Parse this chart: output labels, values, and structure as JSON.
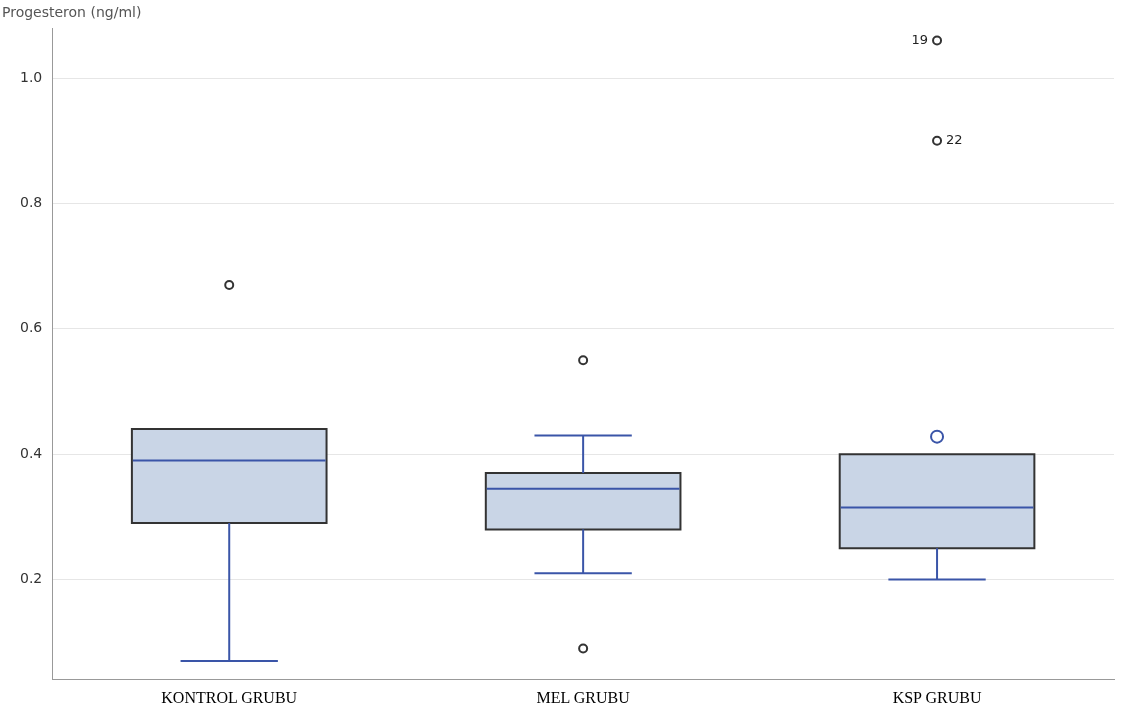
{
  "chart_data": {
    "type": "box",
    "ylabel": "Progesteron (ng/ml)",
    "categories": [
      "KONTROL GRUBU",
      "MEL GRUBU",
      "KSP GRUBU"
    ],
    "boxes": [
      {
        "low": 0.07,
        "q1": 0.29,
        "median": 0.39,
        "q3": 0.44,
        "high": 0.44,
        "mean": 0.372,
        "outliers": [
          0.67
        ]
      },
      {
        "low": 0.21,
        "q1": 0.28,
        "median": 0.345,
        "q3": 0.37,
        "high": 0.43,
        "mean": 0.328,
        "outliers": [
          0.55,
          0.09
        ]
      },
      {
        "low": 0.2,
        "q1": 0.25,
        "median": 0.315,
        "q3": 0.4,
        "high": 0.4,
        "mean": 0.428,
        "outliers": [
          1.06,
          0.9
        ]
      }
    ],
    "color": "#c9d5e6",
    "ylim": [
      0.04,
      1.08
    ],
    "yticks": [
      {
        "value": 0.2,
        "label": "0.2"
      },
      {
        "value": 0.4,
        "label": "0.4"
      },
      {
        "value": 0.6,
        "label": "0.6"
      },
      {
        "value": 0.8,
        "label": "0.8"
      },
      {
        "value": 1,
        "label": "1.0"
      }
    ],
    "grid": "y",
    "annotations": [
      "19",
      "22"
    ]
  }
}
